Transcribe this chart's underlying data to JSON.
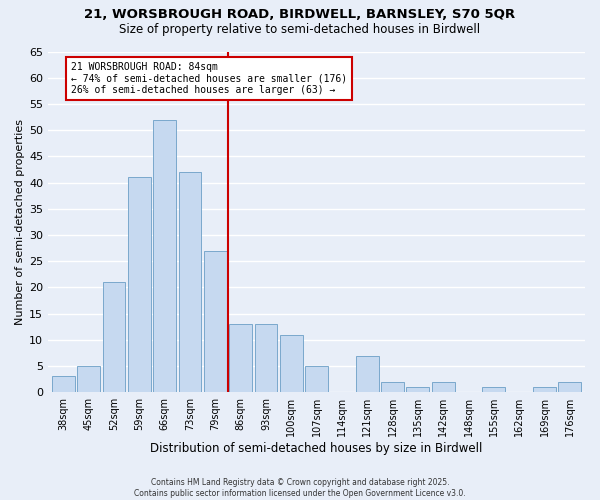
{
  "title_line1": "21, WORSBROUGH ROAD, BIRDWELL, BARNSLEY, S70 5QR",
  "title_line2": "Size of property relative to semi-detached houses in Birdwell",
  "xlabel": "Distribution of semi-detached houses by size in Birdwell",
  "ylabel": "Number of semi-detached properties",
  "categories": [
    "38sqm",
    "45sqm",
    "52sqm",
    "59sqm",
    "66sqm",
    "73sqm",
    "79sqm",
    "86sqm",
    "93sqm",
    "100sqm",
    "107sqm",
    "114sqm",
    "121sqm",
    "128sqm",
    "135sqm",
    "142sqm",
    "148sqm",
    "155sqm",
    "162sqm",
    "169sqm",
    "176sqm"
  ],
  "values": [
    3,
    5,
    21,
    41,
    52,
    42,
    27,
    13,
    13,
    11,
    5,
    0,
    7,
    2,
    1,
    2,
    0,
    1,
    0,
    1,
    2
  ],
  "bar_color": "#c6d9f0",
  "bar_edge_color": "#7aa8cc",
  "vline_color": "#cc0000",
  "annotation_box_edge_color": "#cc0000",
  "annotation_text_line1": "21 WORSBROUGH ROAD: 84sqm",
  "annotation_text_line2": "← 74% of semi-detached houses are smaller (176)",
  "annotation_text_line3": "26% of semi-detached houses are larger (63) →",
  "background_color": "#e8eef8",
  "grid_color": "#ffffff",
  "ylim": [
    0,
    65
  ],
  "yticks": [
    0,
    5,
    10,
    15,
    20,
    25,
    30,
    35,
    40,
    45,
    50,
    55,
    60,
    65
  ],
  "footer_line1": "Contains HM Land Registry data © Crown copyright and database right 2025.",
  "footer_line2": "Contains public sector information licensed under the Open Government Licence v3.0."
}
